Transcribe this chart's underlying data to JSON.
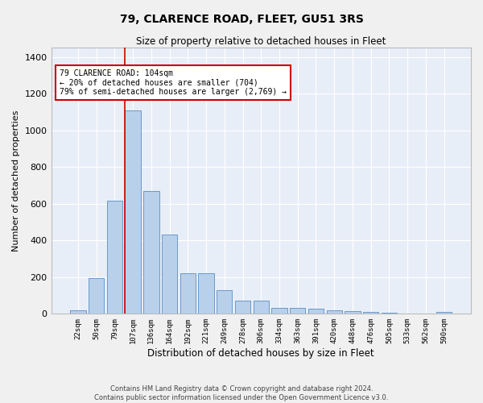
{
  "title": "79, CLARENCE ROAD, FLEET, GU51 3RS",
  "subtitle": "Size of property relative to detached houses in Fleet",
  "xlabel": "Distribution of detached houses by size in Fleet",
  "ylabel": "Number of detached properties",
  "footer_line1": "Contains HM Land Registry data © Crown copyright and database right 2024.",
  "footer_line2": "Contains public sector information licensed under the Open Government Licence v3.0.",
  "categories": [
    "22sqm",
    "50sqm",
    "79sqm",
    "107sqm",
    "136sqm",
    "164sqm",
    "192sqm",
    "221sqm",
    "249sqm",
    "278sqm",
    "306sqm",
    "334sqm",
    "363sqm",
    "391sqm",
    "420sqm",
    "448sqm",
    "476sqm",
    "505sqm",
    "533sqm",
    "562sqm",
    "590sqm"
  ],
  "values": [
    18,
    195,
    615,
    1110,
    670,
    430,
    220,
    220,
    130,
    72,
    72,
    32,
    32,
    28,
    18,
    15,
    10,
    5,
    0,
    0,
    12
  ],
  "bar_color": "#b8d0ea",
  "bar_edge_color": "#5a8fc2",
  "bg_color": "#e8eef8",
  "grid_color": "#ffffff",
  "vline_x_index": 3,
  "vline_color": "#cc0000",
  "annotation_text": "79 CLARENCE ROAD: 104sqm\n← 20% of detached houses are smaller (704)\n79% of semi-detached houses are larger (2,769) →",
  "annotation_box_color": "#cc0000",
  "ylim": [
    0,
    1450
  ],
  "yticks": [
    0,
    200,
    400,
    600,
    800,
    1000,
    1200,
    1400
  ]
}
